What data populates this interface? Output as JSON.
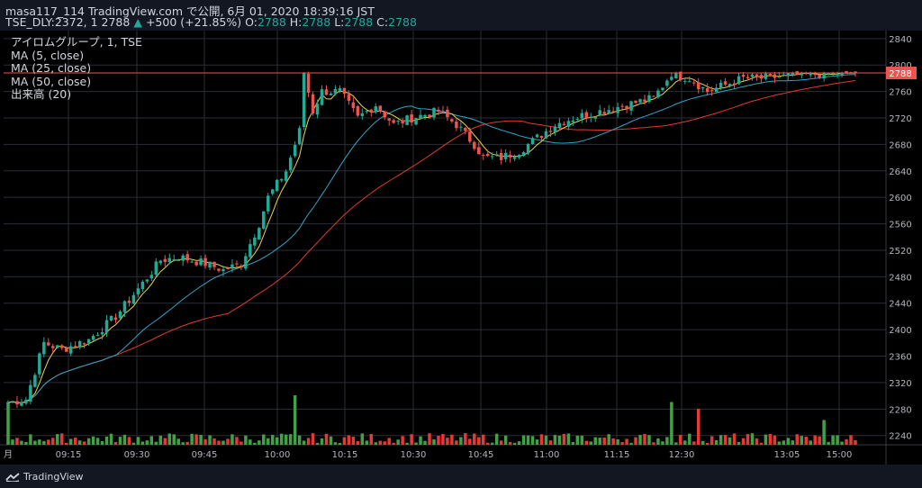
{
  "header": {
    "line1": "masa117_114 TradingView.com で公開, 6月 01, 2020 18:39:16 JST",
    "symbol": "TSE_DLY:2372, 1 2788",
    "arrow": "▲",
    "change": "+500 (+21.85%)",
    "o_label": "O:",
    "o_value": "2788",
    "h_label": "H:",
    "h_value": "2788",
    "l_label": "L:",
    "l_value": "2788",
    "c_label": "C:",
    "c_value": "2788"
  },
  "legend": {
    "title": "アイロムグループ, 1, TSE",
    "ma5": "MA (5, close)",
    "ma25": "MA (25, close)",
    "ma50": "MA (50, close)",
    "volume": "出来高 (20)"
  },
  "footer": {
    "brand": "TradingView"
  },
  "chart_data": {
    "type": "candlestick",
    "y_axis_ticks": [
      2240,
      2280,
      2320,
      2360,
      2400,
      2440,
      2480,
      2520,
      2560,
      2600,
      2640,
      2680,
      2720,
      2760,
      2800,
      2840
    ],
    "ylim": [
      2226,
      2852
    ],
    "last_price_label": "2788",
    "x_axis_labels": [
      "月",
      "09:15",
      "09:30",
      "09:45",
      "10:00",
      "10:15",
      "10:30",
      "10:45",
      "11:00",
      "11:15",
      "12:30",
      "13:05",
      "15:00"
    ],
    "series_names": [
      "MA (5, close)",
      "MA (25, close)",
      "MA (50, close)",
      "出来高 (20)"
    ],
    "colors": {
      "up": "#26a69a",
      "up_bright": "#22ab94",
      "down": "#ef5350",
      "vol_up": "#43a047",
      "vol_down": "#e53935",
      "ma5": "#f0d24a",
      "ma25": "#32a4c8",
      "ma50": "#e0392f",
      "price_line": "#ef5350",
      "grid": "#2a2e39",
      "axis_text": "#b2b5be"
    },
    "close_keypoints": [
      [
        0,
        2290
      ],
      [
        4,
        2295
      ],
      [
        8,
        2380
      ],
      [
        12,
        2370
      ],
      [
        18,
        2385
      ],
      [
        24,
        2420
      ],
      [
        30,
        2470
      ],
      [
        34,
        2505
      ],
      [
        38,
        2510
      ],
      [
        44,
        2500
      ],
      [
        48,
        2490
      ],
      [
        52,
        2500
      ],
      [
        56,
        2560
      ],
      [
        58,
        2600
      ],
      [
        62,
        2640
      ],
      [
        65,
        2700
      ],
      [
        66,
        2788
      ],
      [
        68,
        2730
      ],
      [
        70,
        2760
      ],
      [
        74,
        2760
      ],
      [
        78,
        2720
      ],
      [
        82,
        2740
      ],
      [
        86,
        2710
      ],
      [
        90,
        2720
      ],
      [
        96,
        2730
      ],
      [
        100,
        2710
      ],
      [
        104,
        2680
      ],
      [
        106,
        2660
      ],
      [
        110,
        2660
      ],
      [
        114,
        2670
      ],
      [
        118,
        2690
      ],
      [
        122,
        2710
      ],
      [
        126,
        2720
      ],
      [
        132,
        2730
      ],
      [
        138,
        2740
      ],
      [
        144,
        2750
      ],
      [
        148,
        2788
      ],
      [
        152,
        2780
      ],
      [
        156,
        2760
      ],
      [
        160,
        2770
      ],
      [
        164,
        2780
      ],
      [
        168,
        2780
      ],
      [
        172,
        2782
      ],
      [
        176,
        2785
      ],
      [
        180,
        2786
      ],
      [
        184,
        2788
      ],
      [
        189,
        2788
      ]
    ],
    "volume_spikes": [
      [
        0,
        95
      ],
      [
        64,
        110
      ],
      [
        148,
        95
      ],
      [
        154,
        80
      ],
      [
        182,
        55
      ]
    ],
    "volume_peak_max": 140
  }
}
